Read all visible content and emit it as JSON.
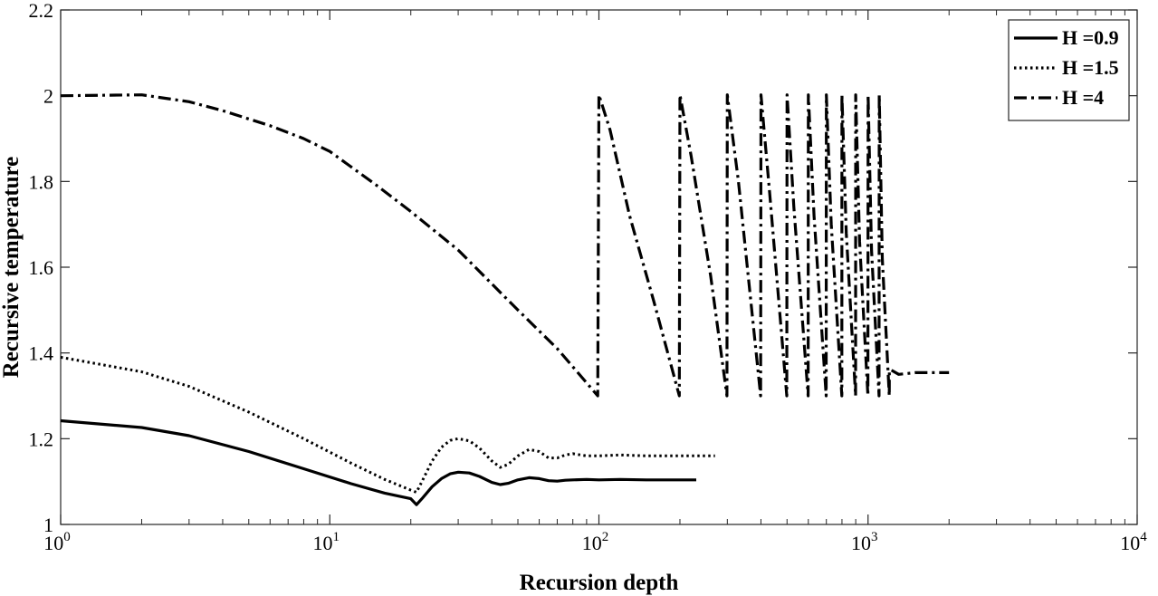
{
  "chart_data": {
    "type": "line",
    "title": "",
    "xlabel": "Recursion depth",
    "ylabel": "Recursive temperature",
    "xscale": "log",
    "xlim": [
      1,
      10000
    ],
    "ylim": [
      1,
      2.2
    ],
    "xticks": [
      {
        "value": 1,
        "base": "10",
        "exp": "0"
      },
      {
        "value": 10,
        "base": "10",
        "exp": "1"
      },
      {
        "value": 100,
        "base": "10",
        "exp": "2"
      },
      {
        "value": 1000,
        "base": "10",
        "exp": "3"
      },
      {
        "value": 10000,
        "base": "10",
        "exp": "4"
      }
    ],
    "yticks": [
      {
        "value": 1,
        "label": "1"
      },
      {
        "value": 1.2,
        "label": "1.2"
      },
      {
        "value": 1.4,
        "label": "1.4"
      },
      {
        "value": 1.6,
        "label": "1.6"
      },
      {
        "value": 1.8,
        "label": "1.8"
      },
      {
        "value": 2,
        "label": "2"
      },
      {
        "value": 2.2,
        "label": "2.2"
      }
    ],
    "grid": false,
    "legend_position": "top-right",
    "series": [
      {
        "name": "H =0.9",
        "style": "solid",
        "x": [
          1,
          2,
          3,
          5,
          8,
          12,
          16,
          20,
          21,
          22,
          24,
          26,
          28,
          30,
          33,
          36,
          40,
          43,
          46,
          50,
          55,
          60,
          65,
          70,
          75,
          80,
          90,
          100,
          120,
          150,
          180,
          230
        ],
        "y": [
          1.242,
          1.226,
          1.207,
          1.17,
          1.13,
          1.095,
          1.073,
          1.06,
          1.046,
          1.06,
          1.088,
          1.107,
          1.118,
          1.122,
          1.12,
          1.112,
          1.098,
          1.093,
          1.096,
          1.104,
          1.109,
          1.107,
          1.102,
          1.101,
          1.103,
          1.104,
          1.105,
          1.104,
          1.105,
          1.104,
          1.104,
          1.104
        ]
      },
      {
        "name": "H =1.5",
        "style": "dotted",
        "x": [
          1,
          2,
          3,
          5,
          8,
          12,
          16,
          20,
          21,
          22,
          24,
          26,
          28,
          30,
          33,
          36,
          40,
          43,
          46,
          50,
          55,
          60,
          65,
          70,
          75,
          80,
          90,
          100,
          120,
          150,
          200,
          270
        ],
        "y": [
          1.39,
          1.356,
          1.322,
          1.262,
          1.2,
          1.143,
          1.105,
          1.08,
          1.075,
          1.1,
          1.148,
          1.18,
          1.196,
          1.2,
          1.195,
          1.178,
          1.148,
          1.133,
          1.14,
          1.16,
          1.175,
          1.17,
          1.155,
          1.155,
          1.162,
          1.165,
          1.16,
          1.16,
          1.162,
          1.16,
          1.16,
          1.16
        ]
      },
      {
        "name": "H =4",
        "style": "dashdot",
        "x": [
          1,
          2,
          3,
          4,
          6,
          8,
          10,
          15,
          20,
          30,
          50,
          70,
          99,
          100,
          110,
          130,
          160,
          199,
          200,
          220,
          260,
          299,
          300,
          330,
          399,
          400,
          430,
          499,
          500,
          530,
          599,
          600,
          630,
          699,
          700,
          730,
          799,
          800,
          830,
          899,
          900,
          930,
          999,
          1000,
          1030,
          1099,
          1100,
          1130,
          1199,
          1200,
          1220,
          1300,
          1500,
          2000
        ],
        "y": [
          2,
          2.002,
          1.986,
          1.965,
          1.93,
          1.9,
          1.87,
          1.79,
          1.73,
          1.64,
          1.5,
          1.41,
          1.3,
          2.002,
          1.92,
          1.72,
          1.52,
          1.3,
          2.002,
          1.86,
          1.58,
          1.3,
          2.002,
          1.8,
          1.3,
          2.002,
          1.78,
          1.3,
          2.002,
          1.74,
          1.3,
          2.002,
          1.72,
          1.3,
          2.002,
          1.7,
          1.3,
          2.002,
          1.68,
          1.3,
          2.002,
          1.66,
          1.3,
          2.002,
          1.64,
          1.3,
          2.002,
          1.62,
          1.3,
          1.36,
          1.36,
          1.35,
          1.354,
          1.354
        ]
      }
    ]
  }
}
